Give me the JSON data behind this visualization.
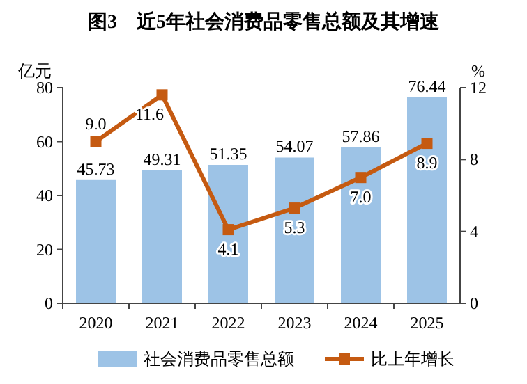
{
  "chart_data": {
    "type": "bar",
    "title": "图3　近5年社会消费品零售总额及其增速",
    "ylabel": "亿元",
    "y2label": "%",
    "categories": [
      "2020",
      "2021",
      "2022",
      "2023",
      "2024",
      "2025"
    ],
    "series": [
      {
        "name": "社会消费品零售总额",
        "color": "#9dc3e6",
        "values": [
          45.73,
          49.31,
          51.35,
          54.07,
          57.86,
          76.44
        ]
      },
      {
        "name": "比上年增长",
        "type": "line",
        "axis": "y2",
        "color": "#c55a11",
        "marker": "square",
        "values": [
          9.0,
          11.6,
          4.1,
          5.3,
          7.0,
          8.9
        ],
        "value_labels": [
          "9.0",
          "11.6",
          "4.1",
          "5.3",
          "7.0",
          "8.9"
        ]
      }
    ],
    "ylim": [
      0,
      80
    ],
    "yticks": [
      0,
      20,
      40,
      60,
      80
    ],
    "y2lim": [
      0,
      12
    ],
    "y2ticks": [
      0,
      4,
      8,
      12
    ],
    "data_labels": true,
    "legend": "bottom",
    "grid": false
  }
}
